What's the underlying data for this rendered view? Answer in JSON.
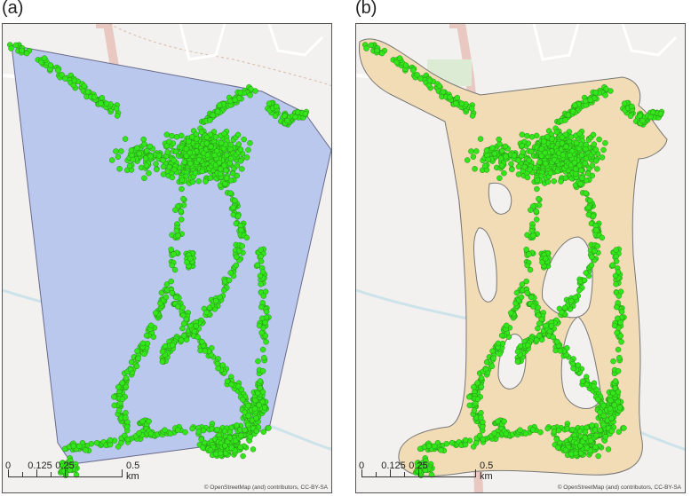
{
  "panels": [
    {
      "label": "(a)",
      "type": "convex-hull",
      "hull_color": "#b9c8ec"
    },
    {
      "label": "(b)",
      "type": "buffer",
      "buffer_color": "#f1dcb6"
    }
  ],
  "points_color": "#33e61a",
  "scalebar": {
    "labels": [
      "0",
      "0.125",
      "0.25",
      "0.5 km"
    ]
  },
  "attribution": "© OpenStreetMap (and) contributors, CC-BY-SA"
}
